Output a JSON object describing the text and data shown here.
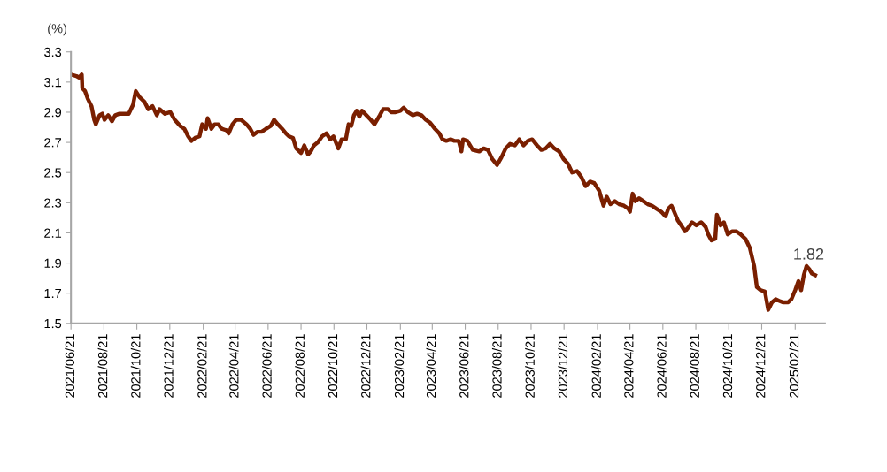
{
  "chart_data": {
    "type": "line",
    "ylabel": "(%)",
    "x": [
      "2021-06-21",
      "2021-07-01",
      "2021-07-06",
      "2021-07-11",
      "2021-07-12",
      "2021-07-17",
      "2021-07-22",
      "2021-07-29",
      "2021-08-03",
      "2021-08-06",
      "2021-08-13",
      "2021-08-18",
      "2021-08-22",
      "2021-08-29",
      "2021-09-05",
      "2021-09-11",
      "2021-09-19",
      "2021-09-28",
      "2021-10-06",
      "2021-10-14",
      "2021-10-19",
      "2021-10-26",
      "2021-11-04",
      "2021-11-11",
      "2021-11-19",
      "2021-11-27",
      "2021-12-02",
      "2021-12-12",
      "2021-12-22",
      "2021-12-30",
      "2022-01-09",
      "2022-01-17",
      "2022-01-24",
      "2022-01-30",
      "2022-02-06",
      "2022-02-14",
      "2022-02-19",
      "2022-02-26",
      "2022-03-01",
      "2022-03-08",
      "2022-03-14",
      "2022-03-21",
      "2022-03-27",
      "2022-04-05",
      "2022-04-09",
      "2022-04-16",
      "2022-04-23",
      "2022-05-02",
      "2022-05-12",
      "2022-05-19",
      "2022-05-25",
      "2022-06-01",
      "2022-06-09",
      "2022-06-17",
      "2022-06-26",
      "2022-07-02",
      "2022-07-09",
      "2022-07-17",
      "2022-07-24",
      "2022-07-30",
      "2022-08-06",
      "2022-08-12",
      "2022-08-21",
      "2022-08-27",
      "2022-09-03",
      "2022-09-08",
      "2022-09-14",
      "2022-09-21",
      "2022-09-29",
      "2022-10-07",
      "2022-10-14",
      "2022-10-20",
      "2022-10-29",
      "2022-11-04",
      "2022-11-12",
      "2022-11-17",
      "2022-11-22",
      "2022-11-27",
      "2022-12-02",
      "2022-12-07",
      "2022-12-12",
      "2022-12-20",
      "2022-12-28",
      "2023-01-04",
      "2023-01-14",
      "2023-01-20",
      "2023-01-29",
      "2023-02-04",
      "2023-02-12",
      "2023-02-21",
      "2023-02-27",
      "2023-03-07",
      "2023-03-16",
      "2023-03-24",
      "2023-04-01",
      "2023-04-09",
      "2023-04-17",
      "2023-04-26",
      "2023-05-04",
      "2023-05-10",
      "2023-05-17",
      "2023-05-25",
      "2023-06-01",
      "2023-06-09",
      "2023-06-14",
      "2023-06-17",
      "2023-06-25",
      "2023-07-05",
      "2023-07-17",
      "2023-07-25",
      "2023-08-02",
      "2023-08-10",
      "2023-08-19",
      "2023-08-27",
      "2023-09-04",
      "2023-09-12",
      "2023-09-21",
      "2023-09-29",
      "2023-10-07",
      "2023-10-15",
      "2023-10-23",
      "2023-11-01",
      "2023-11-09",
      "2023-11-17",
      "2023-11-25",
      "2023-12-03",
      "2023-12-12",
      "2023-12-20",
      "2023-12-28",
      "2024-01-05",
      "2024-01-14",
      "2024-01-22",
      "2024-01-30",
      "2024-02-07",
      "2024-02-15",
      "2024-02-24",
      "2024-03-03",
      "2024-03-09",
      "2024-03-16",
      "2024-03-24",
      "2024-04-01",
      "2024-04-10",
      "2024-04-18",
      "2024-04-21",
      "2024-04-26",
      "2024-05-01",
      "2024-05-08",
      "2024-05-16",
      "2024-05-24",
      "2024-06-01",
      "2024-06-09",
      "2024-06-18",
      "2024-06-26",
      "2024-07-01",
      "2024-07-07",
      "2024-07-12",
      "2024-07-19",
      "2024-07-25",
      "2024-08-01",
      "2024-08-08",
      "2024-08-14",
      "2024-08-22",
      "2024-08-31",
      "2024-09-08",
      "2024-09-13",
      "2024-09-19",
      "2024-09-26",
      "2024-09-29",
      "2024-10-06",
      "2024-10-12",
      "2024-10-19",
      "2024-10-27",
      "2024-11-04",
      "2024-11-12",
      "2024-11-21",
      "2024-11-29",
      "2024-12-07",
      "2024-12-12",
      "2024-12-19",
      "2024-12-27",
      "2025-01-02",
      "2025-01-09",
      "2025-01-16",
      "2025-01-22",
      "2025-01-29",
      "2025-02-08",
      "2025-02-14",
      "2025-02-21",
      "2025-02-27",
      "2025-03-04",
      "2025-03-09",
      "2025-03-14",
      "2025-03-19",
      "2025-03-24",
      "2025-03-30"
    ],
    "series": [
      {
        "color": "#7a1f00",
        "values": [
          3.15,
          3.14,
          3.13,
          3.15,
          3.06,
          3.04,
          2.99,
          2.94,
          2.85,
          2.82,
          2.88,
          2.89,
          2.85,
          2.88,
          2.84,
          2.88,
          2.89,
          2.89,
          2.89,
          2.95,
          3.04,
          3.0,
          2.97,
          2.92,
          2.94,
          2.88,
          2.92,
          2.89,
          2.9,
          2.85,
          2.81,
          2.79,
          2.74,
          2.71,
          2.73,
          2.74,
          2.82,
          2.79,
          2.86,
          2.79,
          2.82,
          2.82,
          2.79,
          2.78,
          2.76,
          2.82,
          2.85,
          2.85,
          2.82,
          2.79,
          2.75,
          2.77,
          2.77,
          2.79,
          2.81,
          2.85,
          2.82,
          2.79,
          2.76,
          2.74,
          2.73,
          2.66,
          2.63,
          2.68,
          2.62,
          2.64,
          2.68,
          2.7,
          2.74,
          2.76,
          2.72,
          2.74,
          2.66,
          2.72,
          2.72,
          2.82,
          2.81,
          2.88,
          2.91,
          2.87,
          2.91,
          2.88,
          2.85,
          2.82,
          2.88,
          2.92,
          2.92,
          2.9,
          2.9,
          2.91,
          2.93,
          2.9,
          2.88,
          2.89,
          2.88,
          2.85,
          2.83,
          2.79,
          2.76,
          2.72,
          2.71,
          2.72,
          2.71,
          2.71,
          2.64,
          2.72,
          2.71,
          2.65,
          2.64,
          2.66,
          2.65,
          2.59,
          2.55,
          2.6,
          2.66,
          2.69,
          2.68,
          2.72,
          2.68,
          2.71,
          2.72,
          2.68,
          2.65,
          2.66,
          2.69,
          2.66,
          2.64,
          2.59,
          2.56,
          2.5,
          2.51,
          2.47,
          2.41,
          2.44,
          2.43,
          2.38,
          2.28,
          2.34,
          2.29,
          2.31,
          2.29,
          2.28,
          2.26,
          2.24,
          2.36,
          2.31,
          2.33,
          2.31,
          2.29,
          2.28,
          2.26,
          2.24,
          2.21,
          2.26,
          2.28,
          2.24,
          2.18,
          2.15,
          2.11,
          2.14,
          2.17,
          2.15,
          2.17,
          2.14,
          2.09,
          2.05,
          2.06,
          2.22,
          2.15,
          2.17,
          2.09,
          2.11,
          2.11,
          2.09,
          2.06,
          2.0,
          1.88,
          1.74,
          1.72,
          1.71,
          1.59,
          1.64,
          1.66,
          1.65,
          1.64,
          1.64,
          1.66,
          1.72,
          1.78,
          1.72,
          1.82,
          1.88,
          1.86,
          1.83,
          1.82
        ]
      }
    ],
    "xlim": [
      "2021-06-21",
      "2025-04-17"
    ],
    "xticks": [
      {
        "value": "2021-06-21",
        "label": "2021/06/21"
      },
      {
        "value": "2021-08-21",
        "label": "2021/08/21"
      },
      {
        "value": "2021-10-21",
        "label": "2021/10/21"
      },
      {
        "value": "2021-12-21",
        "label": "2021/12/21"
      },
      {
        "value": "2022-02-21",
        "label": "2022/02/21"
      },
      {
        "value": "2022-04-21",
        "label": "2022/04/21"
      },
      {
        "value": "2022-06-21",
        "label": "2022/06/21"
      },
      {
        "value": "2022-08-21",
        "label": "2022/08/21"
      },
      {
        "value": "2022-10-21",
        "label": "2022/10/21"
      },
      {
        "value": "2022-12-21",
        "label": "2022/12/21"
      },
      {
        "value": "2023-02-21",
        "label": "2023/02/21"
      },
      {
        "value": "2023-04-21",
        "label": "2023/04/21"
      },
      {
        "value": "2023-06-21",
        "label": "2023/06/21"
      },
      {
        "value": "2023-08-21",
        "label": "2023/08/21"
      },
      {
        "value": "2023-10-21",
        "label": "2023/10/21"
      },
      {
        "value": "2023-12-21",
        "label": "2023/12/21"
      },
      {
        "value": "2024-02-21",
        "label": "2024/02/21"
      },
      {
        "value": "2024-04-21",
        "label": "2024/04/21"
      },
      {
        "value": "2024-06-21",
        "label": "2024/06/21"
      },
      {
        "value": "2024-08-21",
        "label": "2024/08/21"
      },
      {
        "value": "2024-10-21",
        "label": "2024/10/21"
      },
      {
        "value": "2024-12-21",
        "label": "2024/12/21"
      },
      {
        "value": "2025-02-21",
        "label": "2025/02/21"
      }
    ],
    "ylim": [
      1.5,
      3.3
    ],
    "yticks": [
      1.5,
      1.7,
      1.9,
      2.1,
      2.3,
      2.5,
      2.7,
      2.9,
      3.1,
      3.3
    ],
    "annotations": [
      {
        "text": "1.82",
        "x": "2025-03-30",
        "y": 1.82
      }
    ],
    "grid": false,
    "marker": "none",
    "line_style": "solid"
  }
}
